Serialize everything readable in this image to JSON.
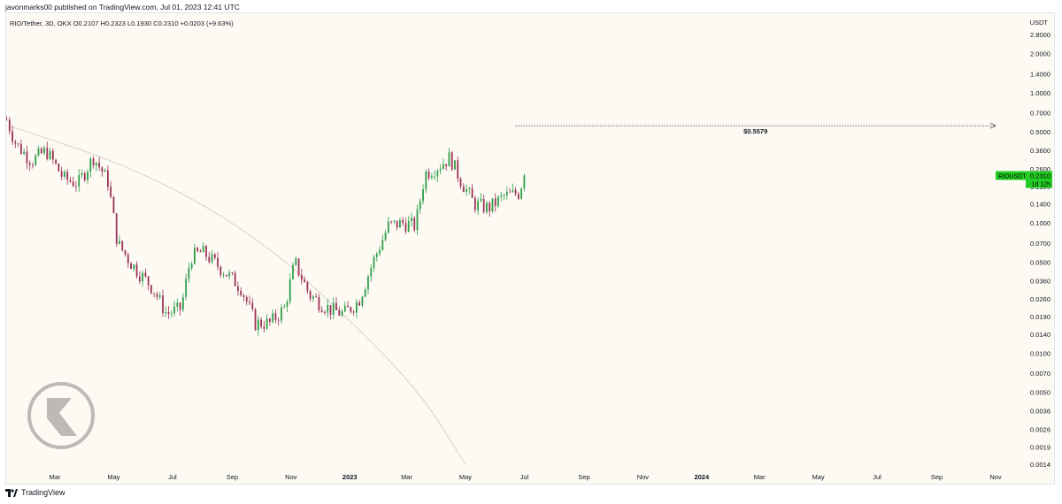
{
  "header": {
    "published": "javonmarks00 published on TradingView.com, Jul 01, 2023 12:41 UTC"
  },
  "footer": {
    "brand": "TradingView"
  },
  "legend": {
    "symbol": "RIO/Tether, 3D, OKX",
    "open": "O0.2107",
    "high": "H0.2323",
    "low": "L0.1930",
    "close": "C0.2310",
    "change": "+0.0203 (+9.63%)"
  },
  "price_badge": {
    "ticker": "RIOUSDT",
    "price": "0.2310",
    "countdown": "1d 12h"
  },
  "target_label": "$0.5579",
  "colors": {
    "up": "#2e9e48",
    "down": "#9c3155",
    "badge": "#22cc22",
    "background": "#fdfaf4",
    "curve": "#d6d1c8"
  },
  "chart_data": {
    "type": "candlestick",
    "scale": "log",
    "currency": "USDT",
    "y_ticks": [
      "2.8000",
      "2.0000",
      "1.4000",
      "1.0000",
      "0.7000",
      "0.5000",
      "0.3600",
      "0.2600",
      "0.1900",
      "0.1400",
      "0.1000",
      "0.0700",
      "0.0500",
      "0.0360",
      "0.0260",
      "0.0190",
      "0.0140",
      "0.0100",
      "0.0070",
      "0.0050",
      "0.0036",
      "0.0026",
      "0.0019",
      "0.0014"
    ],
    "x_ticks": [
      "Mar",
      "May",
      "Jul",
      "Sep",
      "Nov",
      "2023",
      "Mar",
      "May",
      "Jul",
      "Sep",
      "Nov",
      "2024",
      "Mar",
      "May",
      "Jul",
      "Sep",
      "Nov"
    ],
    "x_tick_dates": [
      "2022-03-01",
      "2022-05-01",
      "2022-07-01",
      "2022-09-01",
      "2022-11-01",
      "2023-01-01",
      "2023-03-01",
      "2023-05-01",
      "2023-07-01",
      "2023-09-01",
      "2023-11-01",
      "2024-01-01",
      "2024-03-01",
      "2024-05-01",
      "2024-07-01",
      "2024-09-01",
      "2024-11-01"
    ],
    "price_path": [
      {
        "date": "2022-01-10",
        "close": 0.62
      },
      {
        "date": "2022-01-20",
        "close": 0.4
      },
      {
        "date": "2022-02-05",
        "close": 0.3
      },
      {
        "date": "2022-02-20",
        "close": 0.36
      },
      {
        "date": "2022-03-10",
        "close": 0.22
      },
      {
        "date": "2022-03-25",
        "close": 0.2
      },
      {
        "date": "2022-04-10",
        "close": 0.32
      },
      {
        "date": "2022-04-25",
        "close": 0.21
      },
      {
        "date": "2022-05-05",
        "close": 0.07
      },
      {
        "date": "2022-05-20",
        "close": 0.048
      },
      {
        "date": "2022-06-10",
        "close": 0.032
      },
      {
        "date": "2022-06-25",
        "close": 0.02
      },
      {
        "date": "2022-07-10",
        "close": 0.022
      },
      {
        "date": "2022-07-20",
        "close": 0.055
      },
      {
        "date": "2022-08-01",
        "close": 0.06
      },
      {
        "date": "2022-08-20",
        "close": 0.045
      },
      {
        "date": "2022-09-10",
        "close": 0.032
      },
      {
        "date": "2022-09-25",
        "close": 0.017
      },
      {
        "date": "2022-10-10",
        "close": 0.017
      },
      {
        "date": "2022-10-25",
        "close": 0.022
      },
      {
        "date": "2022-11-05",
        "close": 0.05
      },
      {
        "date": "2022-11-20",
        "close": 0.028
      },
      {
        "date": "2022-12-10",
        "close": 0.022
      },
      {
        "date": "2022-12-25",
        "close": 0.02
      },
      {
        "date": "2023-01-10",
        "close": 0.025
      },
      {
        "date": "2023-01-25",
        "close": 0.05
      },
      {
        "date": "2023-02-10",
        "close": 0.095
      },
      {
        "date": "2023-02-25",
        "close": 0.1
      },
      {
        "date": "2023-03-10",
        "close": 0.095
      },
      {
        "date": "2023-03-20",
        "close": 0.24
      },
      {
        "date": "2023-04-05",
        "close": 0.28
      },
      {
        "date": "2023-04-15",
        "close": 0.32
      },
      {
        "date": "2023-04-25",
        "close": 0.22
      },
      {
        "date": "2023-05-10",
        "close": 0.14
      },
      {
        "date": "2023-05-25",
        "close": 0.13
      },
      {
        "date": "2023-06-10",
        "close": 0.16
      },
      {
        "date": "2023-06-25",
        "close": 0.17
      },
      {
        "date": "2023-07-01",
        "close": 0.231
      }
    ],
    "annotations": [
      {
        "type": "target_line",
        "price": 0.5579,
        "label": "$0.5579",
        "from": "2023-07-01",
        "to": "2024-11-01"
      },
      {
        "type": "curve",
        "points": [
          {
            "date": "2022-01-15",
            "price": 0.55
          },
          {
            "date": "2022-06-01",
            "price": 0.25
          },
          {
            "date": "2022-10-01",
            "price": 0.075
          },
          {
            "date": "2023-01-01",
            "price": 0.018
          },
          {
            "date": "2023-03-15",
            "price": 0.005
          },
          {
            "date": "2023-05-01",
            "price": 0.0014
          }
        ]
      }
    ]
  }
}
